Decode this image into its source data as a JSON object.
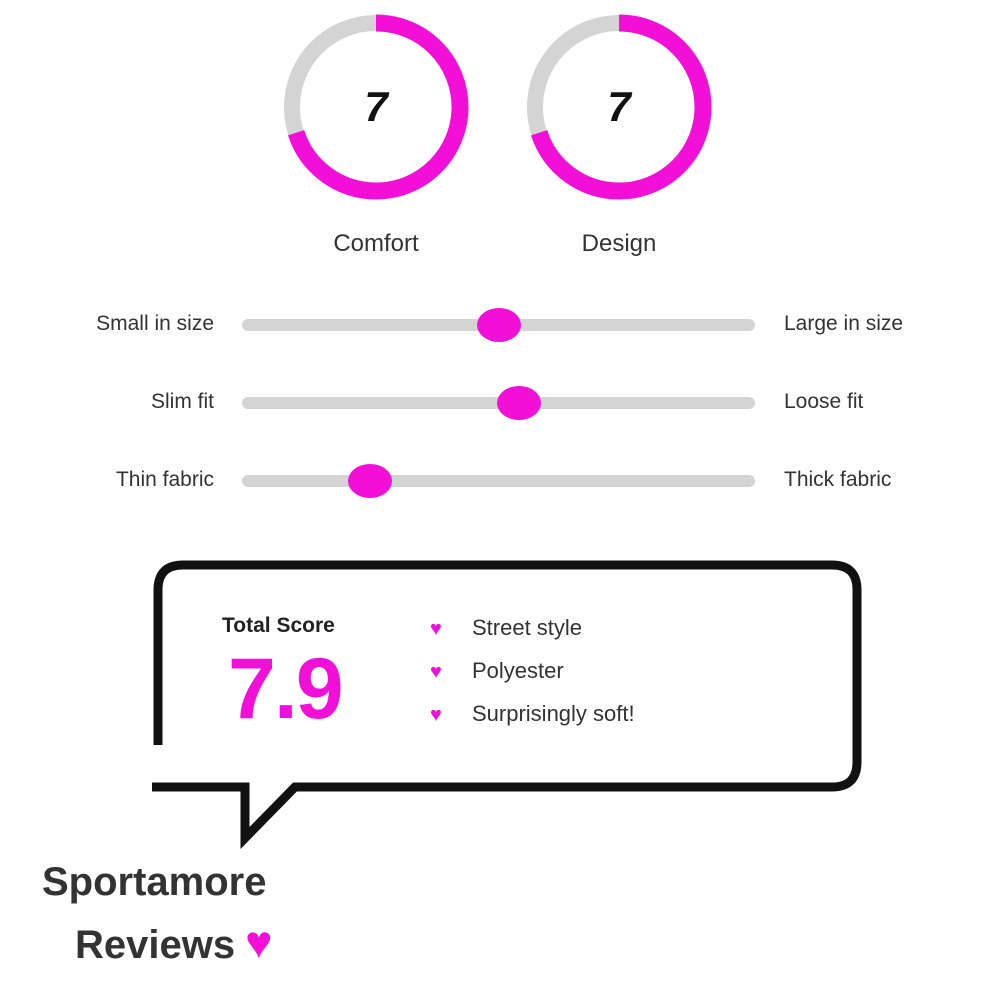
{
  "colors": {
    "accent": "#f20fd8",
    "track": "#d4d4d4",
    "outline": "#111111"
  },
  "ratings": [
    {
      "label": "Comfort",
      "value": "7",
      "score": 7,
      "max": 10
    },
    {
      "label": "Design",
      "value": "7",
      "score": 7,
      "max": 10
    }
  ],
  "sliders": [
    {
      "left_label": "Small in size",
      "right_label": "Large in size",
      "position": 0.5
    },
    {
      "left_label": "Slim fit",
      "right_label": "Loose fit",
      "position": 0.54
    },
    {
      "left_label": "Thin fabric",
      "right_label": "Thick fabric",
      "position": 0.25
    }
  ],
  "total": {
    "label": "Total Score",
    "value": "7.9"
  },
  "features": [
    {
      "icon": "heart-icon",
      "text": "Street style"
    },
    {
      "icon": "heart-icon",
      "text": "Polyester"
    },
    {
      "icon": "heart-icon",
      "text": "Surprisingly soft!"
    }
  ],
  "brand": {
    "line1": "Sportamore",
    "line2": "Reviews",
    "icon": "heart-icon"
  }
}
